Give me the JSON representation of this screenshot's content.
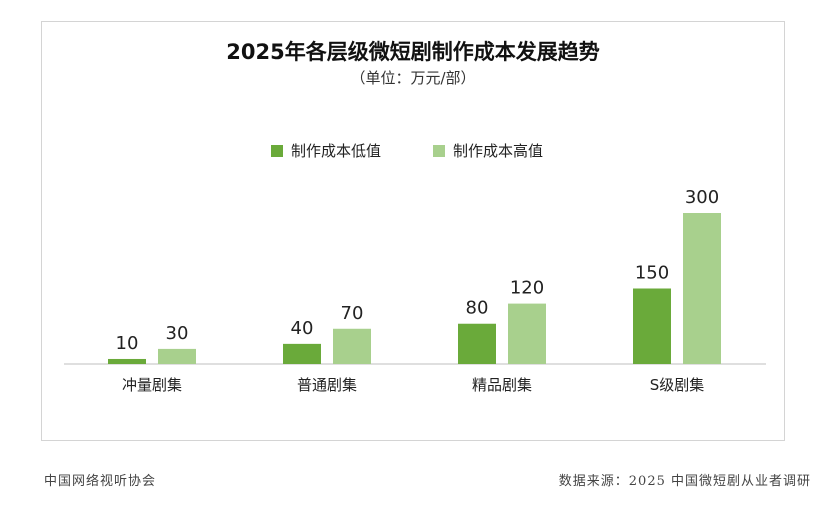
{
  "chart_data": {
    "type": "bar",
    "title": "2025年各层级微短剧制作成本发展趋势",
    "subtitle": "（单位：万元/部）",
    "categories": [
      "冲量剧集",
      "普通剧集",
      "精品剧集",
      "S级剧集"
    ],
    "series": [
      {
        "name": "制作成本低值",
        "values": [
          10,
          40,
          80,
          150
        ],
        "color": "#6aaa3a"
      },
      {
        "name": "制作成本高值",
        "values": [
          30,
          70,
          120,
          300
        ],
        "color": "#a8d08d"
      }
    ],
    "ylim": [
      0,
      330
    ],
    "grid": false,
    "legend_position": "top",
    "data_labels": true
  },
  "footer": {
    "left": "中国网络视听协会",
    "right": "数据来源：2025 中国微短剧从业者调研"
  }
}
